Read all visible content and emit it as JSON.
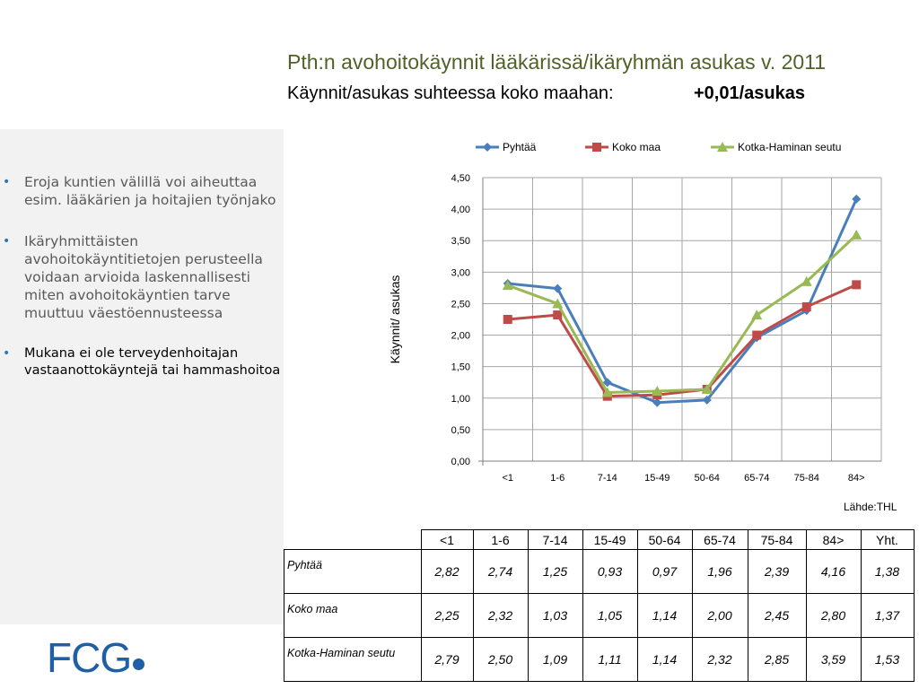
{
  "title": "Pth:n avohoitokäynnit lääkärissä/ikäryhmän asukas v. 2011",
  "subtitle_label": "Käynnit/asukas suhteessa koko maahan:",
  "subtitle_value": "+0,01/asukas",
  "bullets": [
    "Eroja kuntien välillä voi aiheuttaa esim. lääkärien ja hoitajien työnjako",
    "Ikäryhmittäisten avohoitokäyntitietojen perusteella voidaan arvioida laskennallisesti miten avohoitokäyntien tarve muuttuu väestöennusteessa",
    "Mukana ei ole terveydenhoitajan vastaanottokäyntejä tai hammashoitoa"
  ],
  "logo_text": "FCG",
  "source": "Lähde:THL",
  "colors": {
    "title": "#4f6228",
    "pyhtaa": "#4a7ebb",
    "koko_maa": "#be4b48",
    "kotka": "#98b954",
    "sidebar": "#f2f2f2",
    "logo": "#1f5fa6"
  },
  "chart_data": {
    "type": "line",
    "title": "",
    "xlabel": "",
    "ylabel": "Käynnit/ asukas",
    "categories": [
      "<1",
      "1-6",
      "7-14",
      "15-49",
      "50-64",
      "65-74",
      "75-84",
      "84>"
    ],
    "ylim": [
      0,
      4.5
    ],
    "yticks": [
      "0,00",
      "0,50",
      "1,00",
      "1,50",
      "2,00",
      "2,50",
      "3,00",
      "3,50",
      "4,00",
      "4,50"
    ],
    "grid": true,
    "legend": "top",
    "series": [
      {
        "name": "Pyhtää",
        "marker": "diamond",
        "values": [
          2.82,
          2.74,
          1.25,
          0.93,
          0.97,
          1.96,
          2.39,
          4.16
        ]
      },
      {
        "name": "Koko maa",
        "marker": "square",
        "values": [
          2.25,
          2.32,
          1.03,
          1.05,
          1.14,
          2.0,
          2.45,
          2.8
        ]
      },
      {
        "name": "Kotka-Haminan seutu",
        "marker": "triangle",
        "values": [
          2.79,
          2.5,
          1.09,
          1.11,
          1.14,
          2.32,
          2.85,
          3.59
        ]
      }
    ]
  },
  "table": {
    "headers": [
      "<1",
      "1-6",
      "7-14",
      "15-49",
      "50-64",
      "65-74",
      "75-84",
      "84>",
      "Yht."
    ],
    "rows": [
      {
        "label": "Pyhtää",
        "values": [
          "2,82",
          "2,74",
          "1,25",
          "0,93",
          "0,97",
          "1,96",
          "2,39",
          "4,16",
          "1,38"
        ]
      },
      {
        "label": "Koko maa",
        "values": [
          "2,25",
          "2,32",
          "1,03",
          "1,05",
          "1,14",
          "2,00",
          "2,45",
          "2,80",
          "1,37"
        ]
      },
      {
        "label": "Kotka-Haminan seutu",
        "values": [
          "2,79",
          "2,50",
          "1,09",
          "1,11",
          "1,14",
          "2,32",
          "2,85",
          "3,59",
          "1,53"
        ]
      }
    ]
  }
}
